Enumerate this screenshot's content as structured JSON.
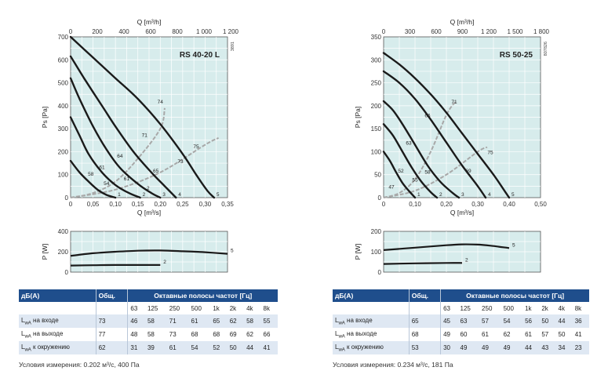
{
  "colors": {
    "plot_bg": "#d7ecec",
    "grid": "#ffffff",
    "curve": "#1a1a1a",
    "system": "#a8a8a8",
    "header": "#1f4e8c",
    "row_alt": "#dfe8f3"
  },
  "left": {
    "id_text": "3891",
    "top_axis_label": "Q [m³/h]",
    "top_ticks": [
      "0",
      "200",
      "400",
      "600",
      "800",
      "1 000",
      "1 200"
    ],
    "bottom_axis_label": "Q [m³/s]",
    "model": "RS 40-20 L",
    "note": "Условия измерения: 0.202 м³/с, 400 Па",
    "chart_data": {
      "type": "line",
      "title": "RS 40-20 L",
      "xlabel": "Q [m³/s]",
      "ylabel": "Ps [Pa]",
      "xlim": [
        0,
        0.35
      ],
      "ylim": [
        0,
        700
      ],
      "xticks": [
        "0",
        "0,05",
        "0,10",
        "0,15",
        "0,20",
        "0,25",
        "0,30",
        "0,35"
      ],
      "yticks": [
        "0",
        "100",
        "200",
        "300",
        "400",
        "500",
        "600",
        "700"
      ],
      "series": [
        {
          "label": "5",
          "points": [
            [
              0,
              700
            ],
            [
              0.05,
              610
            ],
            [
              0.1,
              520
            ],
            [
              0.15,
              430
            ],
            [
              0.2,
              320
            ],
            [
              0.25,
              190
            ],
            [
              0.28,
              100
            ],
            [
              0.305,
              30
            ],
            [
              0.32,
              0
            ]
          ]
        },
        {
          "label": "4",
          "points": [
            [
              0,
              615
            ],
            [
              0.03,
              520
            ],
            [
              0.07,
              400
            ],
            [
              0.1,
              310
            ],
            [
              0.14,
              200
            ],
            [
              0.18,
              110
            ],
            [
              0.21,
              50
            ],
            [
              0.235,
              0
            ]
          ]
        },
        {
          "label": "3",
          "points": [
            [
              0,
              520
            ],
            [
              0.02,
              430
            ],
            [
              0.05,
              310
            ],
            [
              0.08,
              210
            ],
            [
              0.11,
              130
            ],
            [
              0.15,
              60
            ],
            [
              0.18,
              20
            ],
            [
              0.2,
              0
            ]
          ]
        },
        {
          "label": "2",
          "points": [
            [
              0,
              350
            ],
            [
              0.02,
              270
            ],
            [
              0.04,
              190
            ],
            [
              0.07,
              110
            ],
            [
              0.1,
              55
            ],
            [
              0.13,
              20
            ],
            [
              0.155,
              0
            ]
          ]
        },
        {
          "label": "1",
          "points": [
            [
              0,
              160
            ],
            [
              0.02,
              110
            ],
            [
              0.04,
              70
            ],
            [
              0.06,
              35
            ],
            [
              0.08,
              12
            ],
            [
              0.1,
              0
            ]
          ]
        }
      ],
      "system_curves": [
        {
          "points": [
            [
              0,
              0
            ],
            [
              0.05,
              20
            ],
            [
              0.1,
              70
            ],
            [
              0.15,
              170
            ],
            [
              0.2,
              300
            ],
            [
              0.21,
              390
            ]
          ]
        },
        {
          "points": [
            [
              0,
              0
            ],
            [
              0.1,
              35
            ],
            [
              0.2,
              110
            ],
            [
              0.3,
              230
            ],
            [
              0.33,
              260
            ]
          ]
        }
      ],
      "annotations": [
        {
          "text": "74",
          "x": 0.2,
          "y": 410
        },
        {
          "text": "71",
          "x": 0.165,
          "y": 265
        },
        {
          "text": "75",
          "x": 0.28,
          "y": 215
        },
        {
          "text": "64",
          "x": 0.11,
          "y": 175
        },
        {
          "text": "73",
          "x": 0.245,
          "y": 150
        },
        {
          "text": "61",
          "x": 0.07,
          "y": 125
        },
        {
          "text": "65",
          "x": 0.19,
          "y": 110
        },
        {
          "text": "58",
          "x": 0.045,
          "y": 95
        },
        {
          "text": "61",
          "x": 0.125,
          "y": 75
        },
        {
          "text": "54",
          "x": 0.08,
          "y": 55
        },
        {
          "text": "2",
          "x": 0.173,
          "y": 35
        }
      ]
    },
    "power_chart": {
      "ylabel": "P [W]",
      "ylim": [
        0,
        400
      ],
      "yticks": [
        "0",
        "200",
        "400"
      ],
      "series": [
        {
          "label": "5",
          "points": [
            [
              0,
              160
            ],
            [
              0.05,
              185
            ],
            [
              0.1,
              200
            ],
            [
              0.15,
              210
            ],
            [
              0.2,
              212
            ],
            [
              0.25,
              205
            ],
            [
              0.3,
              195
            ],
            [
              0.35,
              180
            ]
          ]
        },
        {
          "label": "2",
          "points": [
            [
              0,
              65
            ],
            [
              0.05,
              68
            ],
            [
              0.1,
              70
            ],
            [
              0.15,
              70
            ],
            [
              0.2,
              70
            ]
          ]
        }
      ]
    }
  },
  "right": {
    "id_text": "807826",
    "top_axis_label": "Q [m³/h]",
    "top_ticks": [
      "0",
      "300",
      "600",
      "900",
      "1 200",
      "1 500",
      "1 800"
    ],
    "bottom_axis_label": "Q [m³/s]",
    "model": "RS 50-25",
    "note": "Условия измерения: 0.234 м³/с, 181 Па",
    "chart_data": {
      "type": "line",
      "title": "RS 50-25",
      "xlabel": "Q [m³/s]",
      "ylabel": "Ps [Pa]",
      "xlim": [
        0,
        0.5
      ],
      "ylim": [
        0,
        350
      ],
      "xticks": [
        "0",
        "0,10",
        "0,20",
        "0,30",
        "0,40",
        "0,50"
      ],
      "yticks": [
        "0",
        "50",
        "100",
        "150",
        "200",
        "250",
        "300",
        "350"
      ],
      "series": [
        {
          "label": "5",
          "points": [
            [
              0,
              315
            ],
            [
              0.05,
              290
            ],
            [
              0.1,
              260
            ],
            [
              0.15,
              225
            ],
            [
              0.2,
              185
            ],
            [
              0.25,
              140
            ],
            [
              0.3,
              95
            ],
            [
              0.35,
              50
            ],
            [
              0.385,
              15
            ],
            [
              0.4,
              0
            ]
          ]
        },
        {
          "label": "4",
          "points": [
            [
              0,
              275
            ],
            [
              0.05,
              250
            ],
            [
              0.1,
              215
            ],
            [
              0.15,
              170
            ],
            [
              0.2,
              120
            ],
            [
              0.25,
              70
            ],
            [
              0.3,
              25
            ],
            [
              0.325,
              0
            ]
          ]
        },
        {
          "label": "3",
          "points": [
            [
              0,
              210
            ],
            [
              0.03,
              190
            ],
            [
              0.06,
              160
            ],
            [
              0.1,
              115
            ],
            [
              0.14,
              70
            ],
            [
              0.18,
              35
            ],
            [
              0.22,
              10
            ],
            [
              0.24,
              0
            ]
          ]
        },
        {
          "label": "2",
          "points": [
            [
              0,
              160
            ],
            [
              0.03,
              135
            ],
            [
              0.06,
              100
            ],
            [
              0.09,
              65
            ],
            [
              0.12,
              35
            ],
            [
              0.15,
              12
            ],
            [
              0.17,
              0
            ]
          ]
        },
        {
          "label": "1",
          "points": [
            [
              0,
              100
            ],
            [
              0.02,
              80
            ],
            [
              0.04,
              55
            ],
            [
              0.06,
              32
            ],
            [
              0.08,
              15
            ],
            [
              0.1,
              0
            ]
          ]
        }
      ],
      "system_curves": [
        {
          "points": [
            [
              0,
              0
            ],
            [
              0.05,
              10
            ],
            [
              0.1,
              40
            ],
            [
              0.15,
              100
            ],
            [
              0.2,
              180
            ],
            [
              0.23,
              210
            ]
          ]
        },
        {
          "points": [
            [
              0,
              0
            ],
            [
              0.1,
              15
            ],
            [
              0.2,
              50
            ],
            [
              0.3,
              100
            ],
            [
              0.33,
              110
            ]
          ]
        }
      ],
      "annotations": [
        {
          "text": "71",
          "x": 0.225,
          "y": 205
        },
        {
          "text": "66",
          "x": 0.14,
          "y": 175
        },
        {
          "text": "75",
          "x": 0.34,
          "y": 95
        },
        {
          "text": "63",
          "x": 0.08,
          "y": 115
        },
        {
          "text": "52",
          "x": 0.055,
          "y": 55
        },
        {
          "text": "58",
          "x": 0.14,
          "y": 52
        },
        {
          "text": "69",
          "x": 0.27,
          "y": 55
        },
        {
          "text": "55",
          "x": 0.1,
          "y": 35
        },
        {
          "text": "47",
          "x": 0.025,
          "y": 20
        }
      ]
    },
    "power_chart": {
      "ylabel": "P [W]",
      "ylim": [
        0,
        200
      ],
      "yticks": [
        "0",
        "100",
        "200"
      ],
      "series": [
        {
          "label": "5",
          "points": [
            [
              0,
              108
            ],
            [
              0.1,
              120
            ],
            [
              0.2,
              132
            ],
            [
              0.25,
              136
            ],
            [
              0.3,
              135
            ],
            [
              0.35,
              128
            ],
            [
              0.4,
              118
            ]
          ]
        },
        {
          "label": "2",
          "points": [
            [
              0,
              40
            ],
            [
              0.1,
              43
            ],
            [
              0.2,
              45
            ],
            [
              0.25,
              45
            ]
          ]
        }
      ]
    }
  },
  "tables": {
    "left": {
      "header": [
        "дБ(A)",
        "Общ.",
        "Октавные полосы частот [Гц]"
      ],
      "bands": [
        "63",
        "125",
        "250",
        "500",
        "1k",
        "2k",
        "4k",
        "8k"
      ],
      "rows": [
        {
          "label": "LwA на входе",
          "total": "73",
          "vals": [
            "46",
            "58",
            "71",
            "61",
            "65",
            "62",
            "58",
            "55"
          ]
        },
        {
          "label": "LwA на выходе",
          "total": "77",
          "vals": [
            "48",
            "58",
            "73",
            "68",
            "68",
            "69",
            "62",
            "66"
          ]
        },
        {
          "label": "LwA к окружению",
          "total": "62",
          "vals": [
            "31",
            "39",
            "61",
            "54",
            "52",
            "50",
            "44",
            "41"
          ]
        }
      ]
    },
    "right": {
      "header": [
        "дБ(A)",
        "Общ.",
        "Октавные полосы частот [Гц]"
      ],
      "bands": [
        "63",
        "125",
        "250",
        "500",
        "1k",
        "2k",
        "4k",
        "8k"
      ],
      "rows": [
        {
          "label": "LwA на входе",
          "total": "65",
          "vals": [
            "45",
            "63",
            "57",
            "54",
            "56",
            "50",
            "44",
            "36"
          ]
        },
        {
          "label": "LwA на выходе",
          "total": "68",
          "vals": [
            "49",
            "60",
            "61",
            "62",
            "61",
            "57",
            "50",
            "41"
          ]
        },
        {
          "label": "LwA к окружению",
          "total": "53",
          "vals": [
            "30",
            "49",
            "49",
            "49",
            "44",
            "43",
            "34",
            "23"
          ]
        }
      ]
    }
  }
}
